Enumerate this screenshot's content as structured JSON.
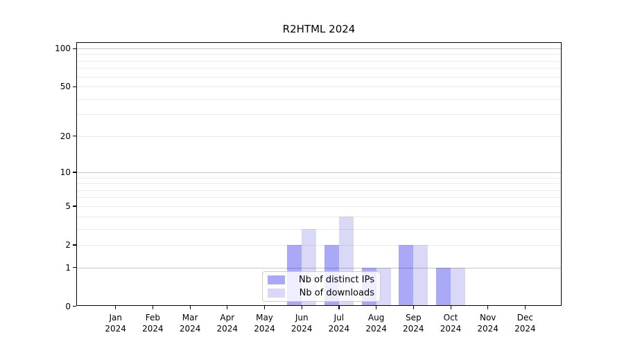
{
  "title": "R2HTML 2024",
  "legend": {
    "items": [
      {
        "label": "Nb of distinct IPs",
        "color": "#a9a9f7"
      },
      {
        "label": "Nb of downloads",
        "color": "#d9d9f7"
      }
    ]
  },
  "chart_data": {
    "type": "bar",
    "title": "R2HTML 2024",
    "categories": [
      "Jan",
      "Feb",
      "Mar",
      "Apr",
      "May",
      "Jun",
      "Jul",
      "Aug",
      "Sep",
      "Oct",
      "Nov",
      "Dec"
    ],
    "category_year": "2024",
    "series": [
      {
        "name": "Nb of distinct IPs",
        "color": "#a9a9f7",
        "values": [
          0,
          0,
          0,
          0,
          0,
          2,
          2,
          1,
          2,
          1,
          0,
          0
        ]
      },
      {
        "name": "Nb of downloads",
        "color": "#d9d9f7",
        "values": [
          0,
          0,
          0,
          0,
          0,
          3,
          4,
          1,
          2,
          1,
          0,
          0
        ]
      }
    ],
    "xlabel": "",
    "ylabel": "",
    "y_scale": "log1p",
    "ylim": [
      0,
      100
    ],
    "y_ticks": [
      0,
      1,
      2,
      5,
      10,
      20,
      50,
      100
    ],
    "grid": true,
    "minor_gridlines": [
      2,
      3,
      4,
      5,
      6,
      7,
      8,
      9,
      20,
      30,
      40,
      50,
      60,
      70,
      80,
      90
    ],
    "decade_gridlines": [
      1,
      10,
      100
    ],
    "legend_position": "bottom-center"
  }
}
